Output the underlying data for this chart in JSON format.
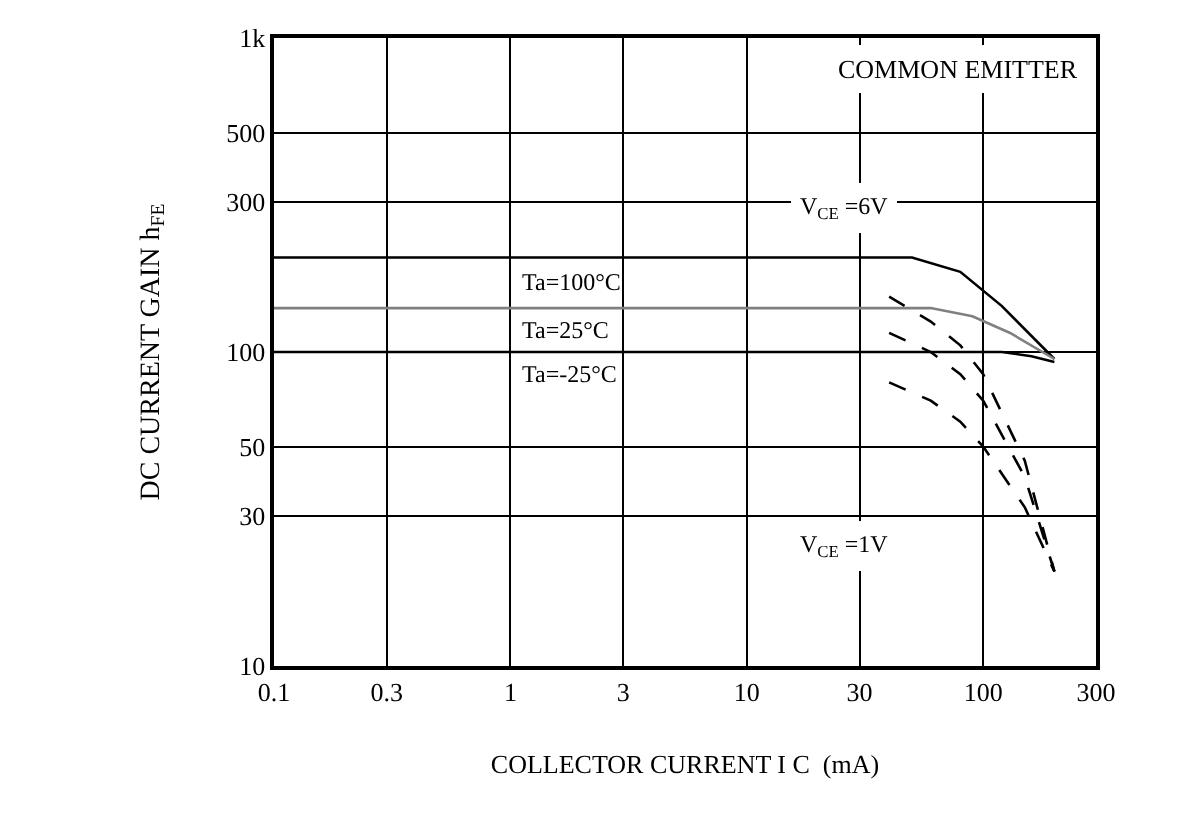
{
  "chart_data": {
    "type": "line",
    "xlabel": "COLLECTOR CURRENT I C  (mA)",
    "ylabel": "DC CURRENT GAIN h$_{FE}$",
    "log": "xy",
    "grid": true,
    "marker": "none",
    "xlim": [
      0.1,
      300
    ],
    "ylim": [
      10,
      1000
    ],
    "xticks": [
      0.1,
      0.3,
      1,
      3,
      10,
      30,
      100,
      300
    ],
    "yticks": [
      10,
      30,
      50,
      100,
      300,
      500,
      {
        "value": 1000,
        "label": "1k"
      }
    ],
    "series": [
      {
        "color": "#000000",
        "line_style": "solid",
        "x": [
          0.1,
          50,
          80,
          120,
          200
        ],
        "values": [
          200,
          200,
          180,
          140,
          95
        ]
      },
      {
        "color": "#808080",
        "line_style": "solid",
        "x": [
          0.1,
          60,
          90,
          130,
          200
        ],
        "values": [
          138,
          138,
          130,
          115,
          95
        ]
      },
      {
        "color": "#000000",
        "line_style": "solid",
        "x": [
          0.1,
          120,
          160,
          200
        ],
        "values": [
          100,
          100,
          97,
          93
        ]
      },
      {
        "color": "#000000",
        "line_style": "dashed",
        "x": [
          40,
          60,
          80,
          100,
          150,
          200
        ],
        "values": [
          150,
          125,
          105,
          85,
          45,
          20
        ]
      },
      {
        "color": "#000000",
        "line_style": "dashed",
        "x": [
          40,
          60,
          80,
          100,
          150,
          200
        ],
        "values": [
          115,
          100,
          85,
          70,
          40,
          20
        ]
      },
      {
        "color": "#000000",
        "line_style": "dashed",
        "x": [
          40,
          60,
          80,
          100,
          150,
          200
        ],
        "values": [
          80,
          70,
          60,
          50,
          32,
          20
        ]
      }
    ],
    "annotations": [
      "COMMON EMITTER",
      "Ta=100°C",
      "Ta=25°C",
      "Ta=-25°C",
      "V$_{CE}$ =6V",
      "V$_{CE}$ =1V"
    ]
  }
}
